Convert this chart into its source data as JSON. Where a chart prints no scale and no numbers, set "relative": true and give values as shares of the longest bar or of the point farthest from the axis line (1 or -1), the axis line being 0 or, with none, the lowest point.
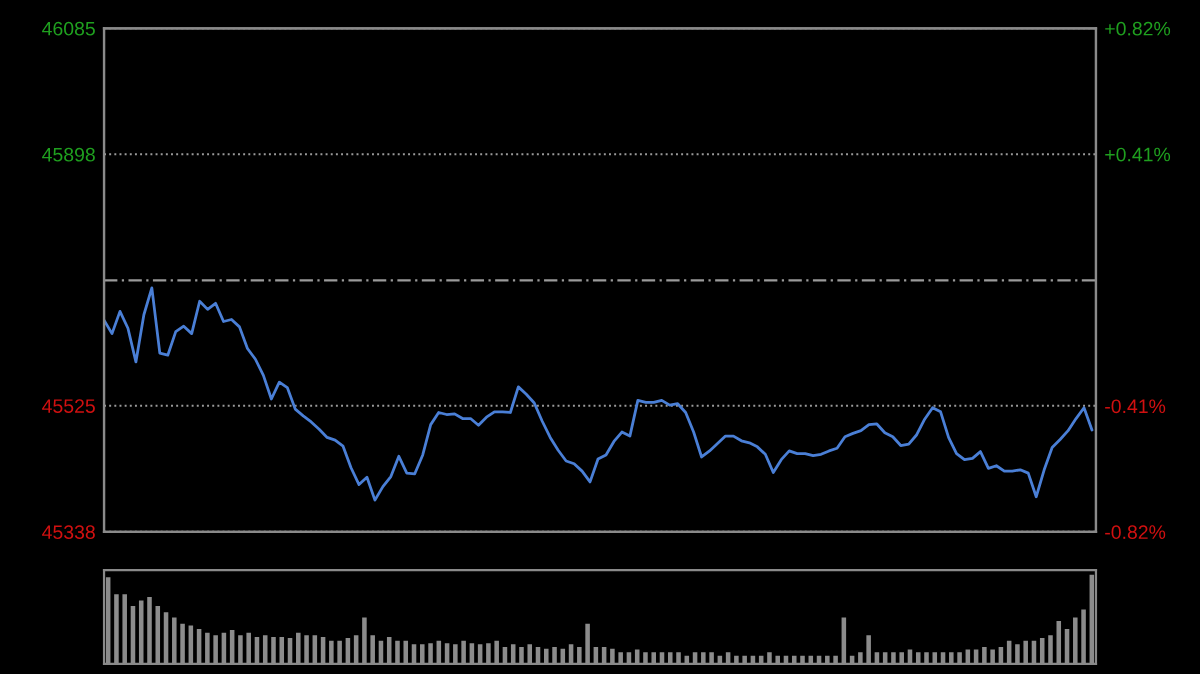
{
  "chart_data": [
    {
      "type": "line",
      "categories": [
        null,
        null,
        null,
        null,
        null,
        null,
        null,
        null,
        null,
        null,
        null,
        null,
        null,
        null,
        null,
        null,
        null,
        null,
        null,
        null,
        null,
        null,
        null,
        null,
        null,
        null,
        null,
        null,
        null,
        null,
        null,
        null,
        null,
        null,
        null,
        null,
        null,
        null,
        null,
        null,
        null,
        null,
        null,
        null,
        null,
        null,
        null,
        null,
        null,
        null,
        null,
        null,
        null,
        null,
        null,
        null,
        null,
        null,
        null,
        null,
        null,
        null,
        null,
        null,
        null,
        null,
        null,
        null,
        null,
        null,
        null,
        null,
        null,
        null,
        null,
        null,
        null,
        null,
        null,
        null,
        null,
        null,
        null,
        null,
        null,
        null,
        null,
        null,
        null,
        null,
        null,
        null,
        null,
        null,
        null,
        null,
        null,
        null,
        null,
        null,
        null,
        null,
        null,
        null,
        null,
        null,
        null,
        null,
        null,
        null,
        null,
        null,
        null,
        null,
        null,
        null,
        null,
        null,
        null,
        null,
        null,
        null,
        null,
        null,
        null
      ],
      "series": [
        {
          "color": "#4a7fd6",
          "values": [
            45652,
            45632,
            45665,
            45640,
            45590,
            45660,
            45700,
            45603,
            45600,
            45635,
            45643,
            45632,
            45680,
            45668,
            45677,
            45650,
            45653,
            45642,
            45610,
            45594,
            45570,
            45535,
            45560,
            45552,
            45520,
            45510,
            45501,
            45490,
            45478,
            45474,
            45465,
            45433,
            45408,
            45419,
            45385,
            45405,
            45420,
            45450,
            45425,
            45424,
            45452,
            45497,
            45515,
            45512,
            45513,
            45506,
            45506,
            45496,
            45508,
            45516,
            45516,
            45515,
            45553,
            45542,
            45529,
            45502,
            45478,
            45459,
            45443,
            45439,
            45428,
            45412,
            45446,
            45452,
            45472,
            45486,
            45480,
            45533,
            45530,
            45530,
            45533,
            45526,
            45528,
            45515,
            45486,
            45449,
            45458,
            45469,
            45480,
            45480,
            45473,
            45470,
            45464,
            45453,
            45426,
            45445,
            45458,
            45454,
            45454,
            45451,
            45453,
            45458,
            45462,
            45479,
            45484,
            45488,
            45497,
            45498,
            45485,
            45479,
            45466,
            45468,
            45482,
            45505,
            45522,
            45516,
            45478,
            45454,
            45445,
            45447,
            45457,
            45432,
            45436,
            45428,
            45428,
            45430,
            45425,
            45390,
            45430,
            45463,
            45475,
            45488,
            45506,
            45522,
            45489
          ]
        }
      ],
      "ylim": [
        45338,
        46085
      ],
      "yticks": [
        45338,
        45525,
        45898,
        46085
      ],
      "y2lim": [
        -0.82,
        0.82
      ],
      "y2ticks": [
        {
          "value": -0.82,
          "label": "-0.82%"
        },
        {
          "value": -0.41,
          "label": "-0.41%"
        },
        {
          "value": 0.41,
          "label": "+0.41%"
        },
        {
          "value": 0.82,
          "label": "+0.82%"
        }
      ],
      "ref_lines": [
        {
          "axis": "y",
          "value": 45711,
          "color": "#9a9a9a",
          "line_style": "dashed"
        }
      ],
      "grid": true,
      "tick_labels": "y"
    },
    {
      "type": "bar",
      "relative": true,
      "categories": [
        null,
        null,
        null,
        null,
        null,
        null,
        null,
        null,
        null,
        null,
        null,
        null,
        null,
        null,
        null,
        null,
        null,
        null,
        null,
        null,
        null,
        null,
        null,
        null,
        null,
        null,
        null,
        null,
        null,
        null,
        null,
        null,
        null,
        null,
        null,
        null,
        null,
        null,
        null,
        null,
        null,
        null,
        null,
        null,
        null,
        null,
        null,
        null,
        null,
        null,
        null,
        null,
        null,
        null,
        null,
        null,
        null,
        null,
        null,
        null,
        null,
        null,
        null,
        null,
        null,
        null,
        null,
        null,
        null,
        null,
        null,
        null,
        null,
        null,
        null,
        null,
        null,
        null,
        null,
        null,
        null,
        null,
        null,
        null,
        null,
        null,
        null,
        null,
        null,
        null,
        null,
        null,
        null,
        null,
        null,
        null,
        null,
        null,
        null,
        null,
        null,
        null,
        null,
        null,
        null,
        null,
        null,
        null,
        null,
        null,
        null,
        null,
        null,
        null,
        null,
        null,
        null,
        null,
        null,
        null
      ],
      "series": [
        {
          "color": "#8c8c8c",
          "values": [
            0.97,
            0.78,
            0.78,
            0.65,
            0.71,
            0.75,
            0.65,
            0.58,
            0.52,
            0.45,
            0.43,
            0.39,
            0.35,
            0.32,
            0.35,
            0.38,
            0.32,
            0.35,
            0.3,
            0.32,
            0.3,
            0.3,
            0.29,
            0.35,
            0.32,
            0.32,
            0.3,
            0.26,
            0.26,
            0.29,
            0.32,
            0.52,
            0.32,
            0.26,
            0.3,
            0.26,
            0.26,
            0.22,
            0.22,
            0.23,
            0.26,
            0.23,
            0.22,
            0.26,
            0.23,
            0.22,
            0.23,
            0.26,
            0.19,
            0.22,
            0.19,
            0.22,
            0.19,
            0.17,
            0.19,
            0.17,
            0.22,
            0.19,
            0.45,
            0.19,
            0.19,
            0.17,
            0.13,
            0.13,
            0.16,
            0.13,
            0.13,
            0.13,
            0.13,
            0.13,
            0.09,
            0.13,
            0.13,
            0.13,
            0.09,
            0.13,
            0.09,
            0.09,
            0.09,
            0.09,
            0.13,
            0.09,
            0.09,
            0.09,
            0.09,
            0.09,
            0.09,
            0.09,
            0.09,
            0.52,
            0.09,
            0.13,
            0.32,
            0.13,
            0.13,
            0.13,
            0.13,
            0.16,
            0.13,
            0.13,
            0.13,
            0.13,
            0.13,
            0.13,
            0.16,
            0.16,
            0.19,
            0.16,
            0.19,
            0.26,
            0.22,
            0.26,
            0.26,
            0.29,
            0.32,
            0.48,
            0.39,
            0.52,
            0.61,
            1.0
          ]
        }
      ],
      "tick_labels": false
    }
  ]
}
